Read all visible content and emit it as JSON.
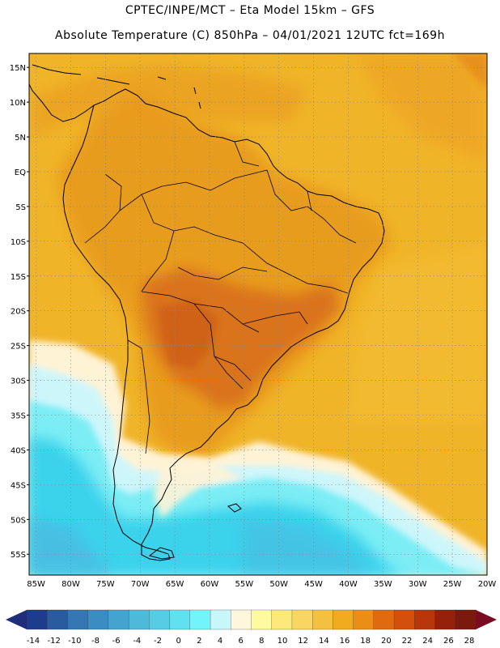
{
  "header": {
    "line1": "CPTEC/INPE/MCT –  Eta Model 15km – GFS",
    "line2": "Absolute Temperature (C) 850hPa – 04/01/2021 12UTC fct=169h"
  },
  "map": {
    "lat_ticks": [
      {
        "label": "15N",
        "lat": 15
      },
      {
        "label": "10N",
        "lat": 10
      },
      {
        "label": "5N",
        "lat": 5
      },
      {
        "label": "EQ",
        "lat": 0
      },
      {
        "label": "5S",
        "lat": -5
      },
      {
        "label": "10S",
        "lat": -10
      },
      {
        "label": "15S",
        "lat": -15
      },
      {
        "label": "20S",
        "lat": -20
      },
      {
        "label": "25S",
        "lat": -25
      },
      {
        "label": "30S",
        "lat": -30
      },
      {
        "label": "35S",
        "lat": -35
      },
      {
        "label": "40S",
        "lat": -40
      },
      {
        "label": "45S",
        "lat": -45
      },
      {
        "label": "50S",
        "lat": -50
      },
      {
        "label": "55S",
        "lat": -55
      }
    ],
    "lon_ticks": [
      {
        "label": "85W",
        "lon": -85
      },
      {
        "label": "80W",
        "lon": -80
      },
      {
        "label": "75W",
        "lon": -75
      },
      {
        "label": "70W",
        "lon": -70
      },
      {
        "label": "65W",
        "lon": -65
      },
      {
        "label": "60W",
        "lon": -60
      },
      {
        "label": "55W",
        "lon": -55
      },
      {
        "label": "50W",
        "lon": -50
      },
      {
        "label": "45W",
        "lon": -45
      },
      {
        "label": "40W",
        "lon": -40
      },
      {
        "label": "35W",
        "lon": -35
      },
      {
        "label": "30W",
        "lon": -30
      },
      {
        "label": "25W",
        "lon": -25
      },
      {
        "label": "20W",
        "lon": -20
      }
    ],
    "lat_range": [
      -58,
      17
    ],
    "lon_range": [
      -86,
      -20
    ],
    "ocean_color": "#f0b429",
    "warm_land_color": "#e89a1f",
    "hot_color": "#d9711b",
    "cool_colors": [
      "#fff3d6",
      "#cdf6fb",
      "#7bedf5",
      "#3ad2ec",
      "#4db8e0"
    ]
  },
  "colorbar": {
    "labels": [
      "-14",
      "-12",
      "-10",
      "-8",
      "-6",
      "-4",
      "-2",
      "0",
      "2",
      "4",
      "6",
      "8",
      "10",
      "12",
      "14",
      "16",
      "18",
      "20",
      "22",
      "24",
      "26",
      "28"
    ],
    "colors": [
      "#1d3d8c",
      "#2a5b9e",
      "#3477b2",
      "#3c8cc4",
      "#44a4cf",
      "#4ebad9",
      "#57cde3",
      "#61e0ef",
      "#73f4fb",
      "#c7f6fb",
      "#fff6dc",
      "#fffaa0",
      "#fde87a",
      "#f9d562",
      "#f4c03f",
      "#f0ac1e",
      "#ea8e18",
      "#e06a10",
      "#d24f0c",
      "#b7370b",
      "#962109",
      "#7b1a0c"
    ],
    "under_color": "#1f2d7a",
    "over_color": "#7a0b21"
  }
}
